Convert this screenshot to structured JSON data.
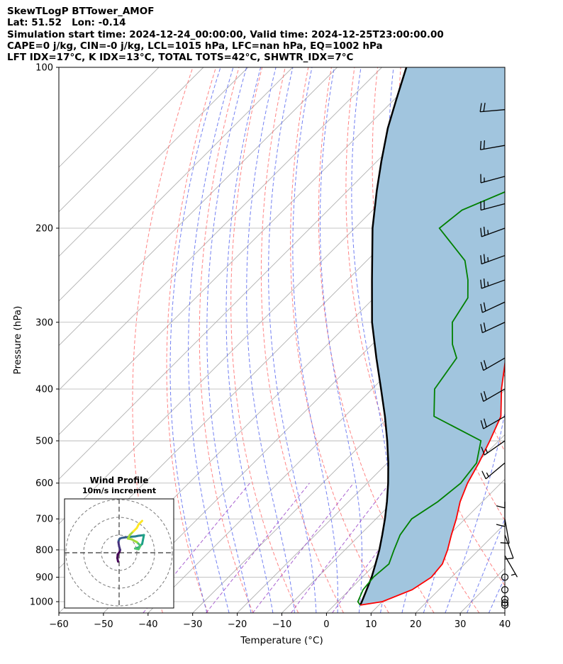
{
  "header": {
    "title_lines": [
      "SkewTLogP BTTower_AMOF",
      "Lat: 51.52   Lon: -0.14",
      "Simulation start time: 2024-12-24_00:00:00, Valid time: 2024-12-25T23:00:00.00",
      "CAPE=0 j/kg, CIN=-0 j/kg, LCL=1015 hPa, LFC=nan hPa, EQ=1002 hPa",
      "LFT IDX=17°C, K IDX=13°C, TOTAL TOTS=42°C, SHWTR_IDX=7°C"
    ]
  },
  "chart_data": {
    "type": "line",
    "xlabel": "Temperature (°C)",
    "ylabel": "Pressure (hPa)",
    "xlim": [
      -60,
      40
    ],
    "ylim": [
      1050,
      100
    ],
    "y_scale": "log",
    "x_ticks": [
      -60,
      -50,
      -40,
      -30,
      -20,
      -10,
      0,
      10,
      20,
      30,
      40
    ],
    "y_ticks": [
      100,
      200,
      300,
      400,
      500,
      600,
      700,
      800,
      900,
      1000
    ],
    "grid": true,
    "colors": {
      "temperature": "#ff0000",
      "dewpoint": "#008000",
      "parcel": "#000000",
      "shading": "#a1c5de",
      "dry_adiabat": "#ff6666",
      "moist_adiabat": "#5c6bf0",
      "mixing_ratio": "#9a47c8",
      "isotherm": "#b0b0b0",
      "barb": "#000000"
    },
    "series": [
      {
        "role": "temperature",
        "pressure": [
          1015,
          1000,
          950,
          900,
          850,
          800,
          750,
          700,
          650,
          600,
          550,
          500,
          450,
          400,
          350,
          300,
          250,
          220,
          200,
          185,
          170,
          150,
          130,
          115,
          100
        ],
        "values": [
          5.8,
          10,
          14,
          15.5,
          15,
          13,
          10.5,
          8,
          5,
          2.5,
          0.5,
          -2,
          -5,
          -11,
          -17,
          -22,
          -28,
          -34,
          -37,
          -38,
          -39,
          -38,
          -38,
          -34,
          -32
        ]
      },
      {
        "role": "dewpoint",
        "pressure": [
          1015,
          1000,
          950,
          900,
          850,
          800,
          750,
          700,
          650,
          600,
          550,
          500,
          450,
          400,
          350,
          330,
          300,
          270,
          250,
          230,
          200,
          185,
          170,
          150,
          130,
          115,
          100
        ],
        "values": [
          5.8,
          4.5,
          3,
          2.5,
          3,
          1,
          -1,
          -2,
          0,
          1,
          0,
          -4,
          -20,
          -26,
          -28,
          -32,
          -37,
          -39,
          -43,
          -48,
          -61,
          -60,
          -54,
          -50,
          -47,
          -43,
          -31
        ]
      },
      {
        "role": "parcel",
        "pressure": [
          1015,
          1000,
          950,
          900,
          850,
          800,
          750,
          700,
          650,
          600,
          550,
          500,
          450,
          400,
          350,
          300,
          250,
          200,
          170,
          150,
          130,
          115,
          100
        ],
        "values": [
          5.8,
          5.4,
          3.8,
          2.1,
          0.0,
          -2.3,
          -5.0,
          -8.0,
          -11.4,
          -15.3,
          -19.8,
          -25.0,
          -31.0,
          -38.0,
          -46.0,
          -55.0,
          -64.5,
          -76.0,
          -83.5,
          -89.0,
          -95.0,
          -99.5,
          -104.5
        ]
      }
    ],
    "wind_barbs": {
      "pressure": [
        1015,
        1005,
        990,
        950,
        900,
        820,
        750,
        700,
        650,
        600,
        550,
        500,
        450,
        400,
        350,
        300,
        275,
        250,
        225,
        200,
        180,
        160,
        140,
        120
      ],
      "speed_kt": [
        0,
        0,
        0,
        0,
        0,
        5,
        10,
        10,
        10,
        10,
        15,
        15,
        20,
        20,
        20,
        20,
        20,
        25,
        25,
        25,
        20,
        15,
        20,
        20
      ],
      "direction_deg": [
        0,
        0,
        0,
        0,
        0,
        150,
        160,
        170,
        180,
        180,
        230,
        235,
        240,
        240,
        240,
        245,
        245,
        250,
        250,
        250,
        255,
        255,
        260,
        265
      ]
    },
    "wind_profile": {
      "title": "Wind Profile",
      "subtitle": "10m/s increment",
      "ring_count": 3,
      "colormap": "viridis",
      "u": [
        -0.3,
        -0.5,
        -0.4,
        0.1,
        0.3,
        0.0,
        -0.2,
        -0.1,
        0.2,
        0.8,
        1.5,
        3.0,
        4.5,
        5.5,
        6.5,
        7.0,
        6.5,
        5.5,
        4.5,
        5.5,
        6.0,
        5.0,
        3.5,
        2.5,
        3.0,
        4.0,
        5.0,
        5.5,
        6.5
      ],
      "v": [
        -2.5,
        -1.5,
        -0.5,
        0.2,
        0.8,
        1.8,
        3.0,
        3.5,
        4.0,
        4.2,
        4.3,
        4.5,
        4.6,
        4.8,
        4.9,
        5.0,
        2.5,
        1.5,
        1.2,
        1.0,
        2.0,
        3.0,
        3.8,
        4.0,
        5.0,
        6.0,
        7.0,
        8.0,
        9.0
      ]
    }
  }
}
